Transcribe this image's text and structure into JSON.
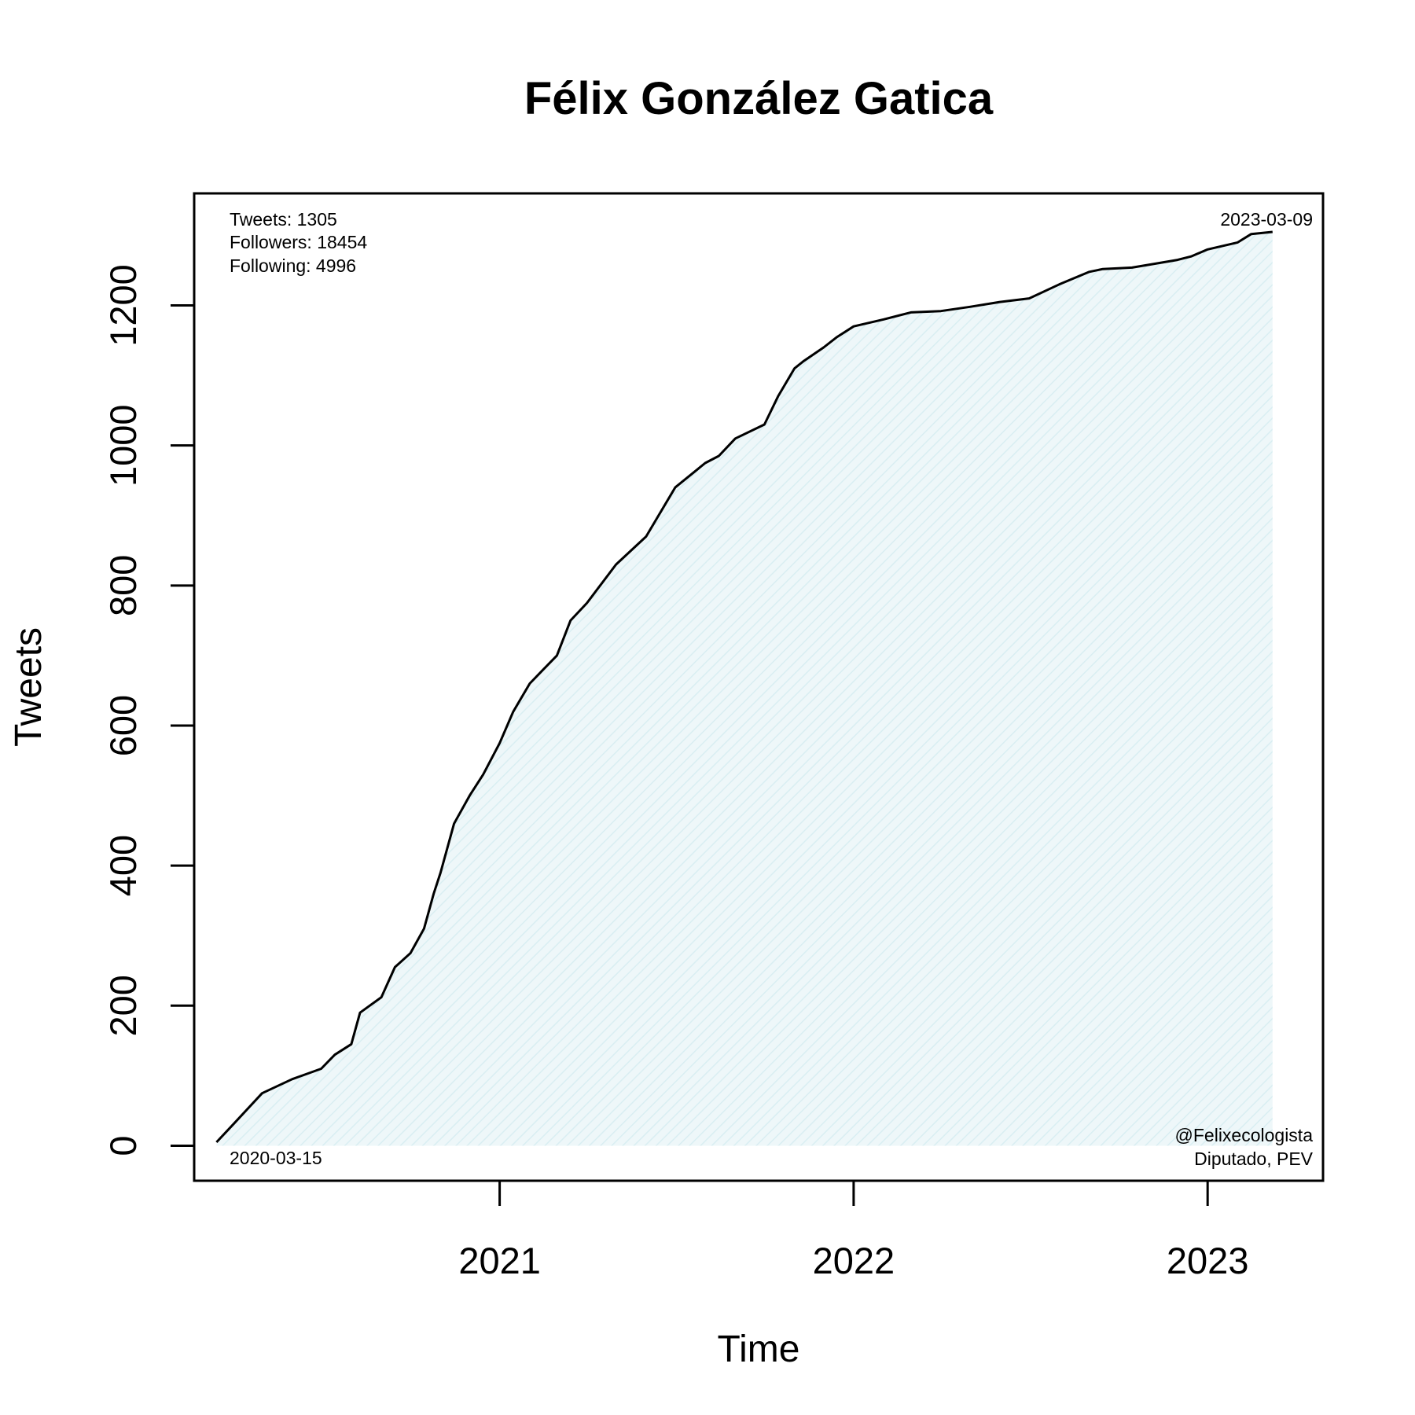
{
  "chart_data": {
    "type": "area",
    "title": "Félix González Gatica",
    "xlabel": "Time",
    "ylabel": "Tweets",
    "x_ticks": [
      "2021",
      "2022",
      "2023"
    ],
    "y_ticks": [
      0,
      200,
      400,
      600,
      800,
      1000,
      1200
    ],
    "xlim": [
      "2020-02-21",
      "2023-04-30"
    ],
    "ylim": [
      -50,
      1360
    ],
    "grid": false,
    "fill_color": "#e6f4f7",
    "line_color": "#000000",
    "series": [
      {
        "x": [
          "2020-03-15",
          "2020-04-01",
          "2020-05-01",
          "2020-06-01",
          "2020-07-01",
          "2020-07-15",
          "2020-08-01",
          "2020-08-10",
          "2020-09-01",
          "2020-09-15",
          "2020-10-01",
          "2020-10-15",
          "2020-10-25",
          "2020-11-01",
          "2020-11-15",
          "2020-12-01",
          "2020-12-15",
          "2021-01-01",
          "2021-01-15",
          "2021-02-01",
          "2021-02-15",
          "2021-03-01",
          "2021-03-15",
          "2021-04-01",
          "2021-05-01",
          "2021-06-01",
          "2021-07-01",
          "2021-08-01",
          "2021-08-15",
          "2021-09-01",
          "2021-10-01",
          "2021-10-15",
          "2021-11-01",
          "2021-11-10",
          "2021-12-01",
          "2021-12-15",
          "2022-01-01",
          "2022-02-01",
          "2022-03-01",
          "2022-04-01",
          "2022-05-01",
          "2022-06-01",
          "2022-07-01",
          "2022-08-01",
          "2022-09-01",
          "2022-09-15",
          "2022-10-01",
          "2022-10-15",
          "2022-11-01",
          "2022-12-01",
          "2022-12-15",
          "2023-01-01",
          "2023-02-01",
          "2023-02-15",
          "2023-03-09"
        ],
        "y": [
          5,
          30,
          75,
          95,
          110,
          130,
          145,
          190,
          212,
          255,
          275,
          310,
          360,
          390,
          460,
          500,
          530,
          575,
          620,
          660,
          680,
          700,
          750,
          775,
          830,
          870,
          940,
          975,
          985,
          1010,
          1030,
          1070,
          1110,
          1120,
          1140,
          1155,
          1170,
          1180,
          1190,
          1192,
          1198,
          1205,
          1210,
          1230,
          1248,
          1252,
          1253,
          1254,
          1258,
          1265,
          1270,
          1280,
          1290,
          1302,
          1305
        ]
      }
    ]
  },
  "annotations": {
    "stats": [
      "Tweets: 1305",
      "Followers: 18454",
      "Following: 4996"
    ],
    "end_date": "2023-03-09",
    "start_date": "2020-03-15",
    "handle": "@Felixecologista",
    "affiliation": "Diputado, PEV"
  }
}
